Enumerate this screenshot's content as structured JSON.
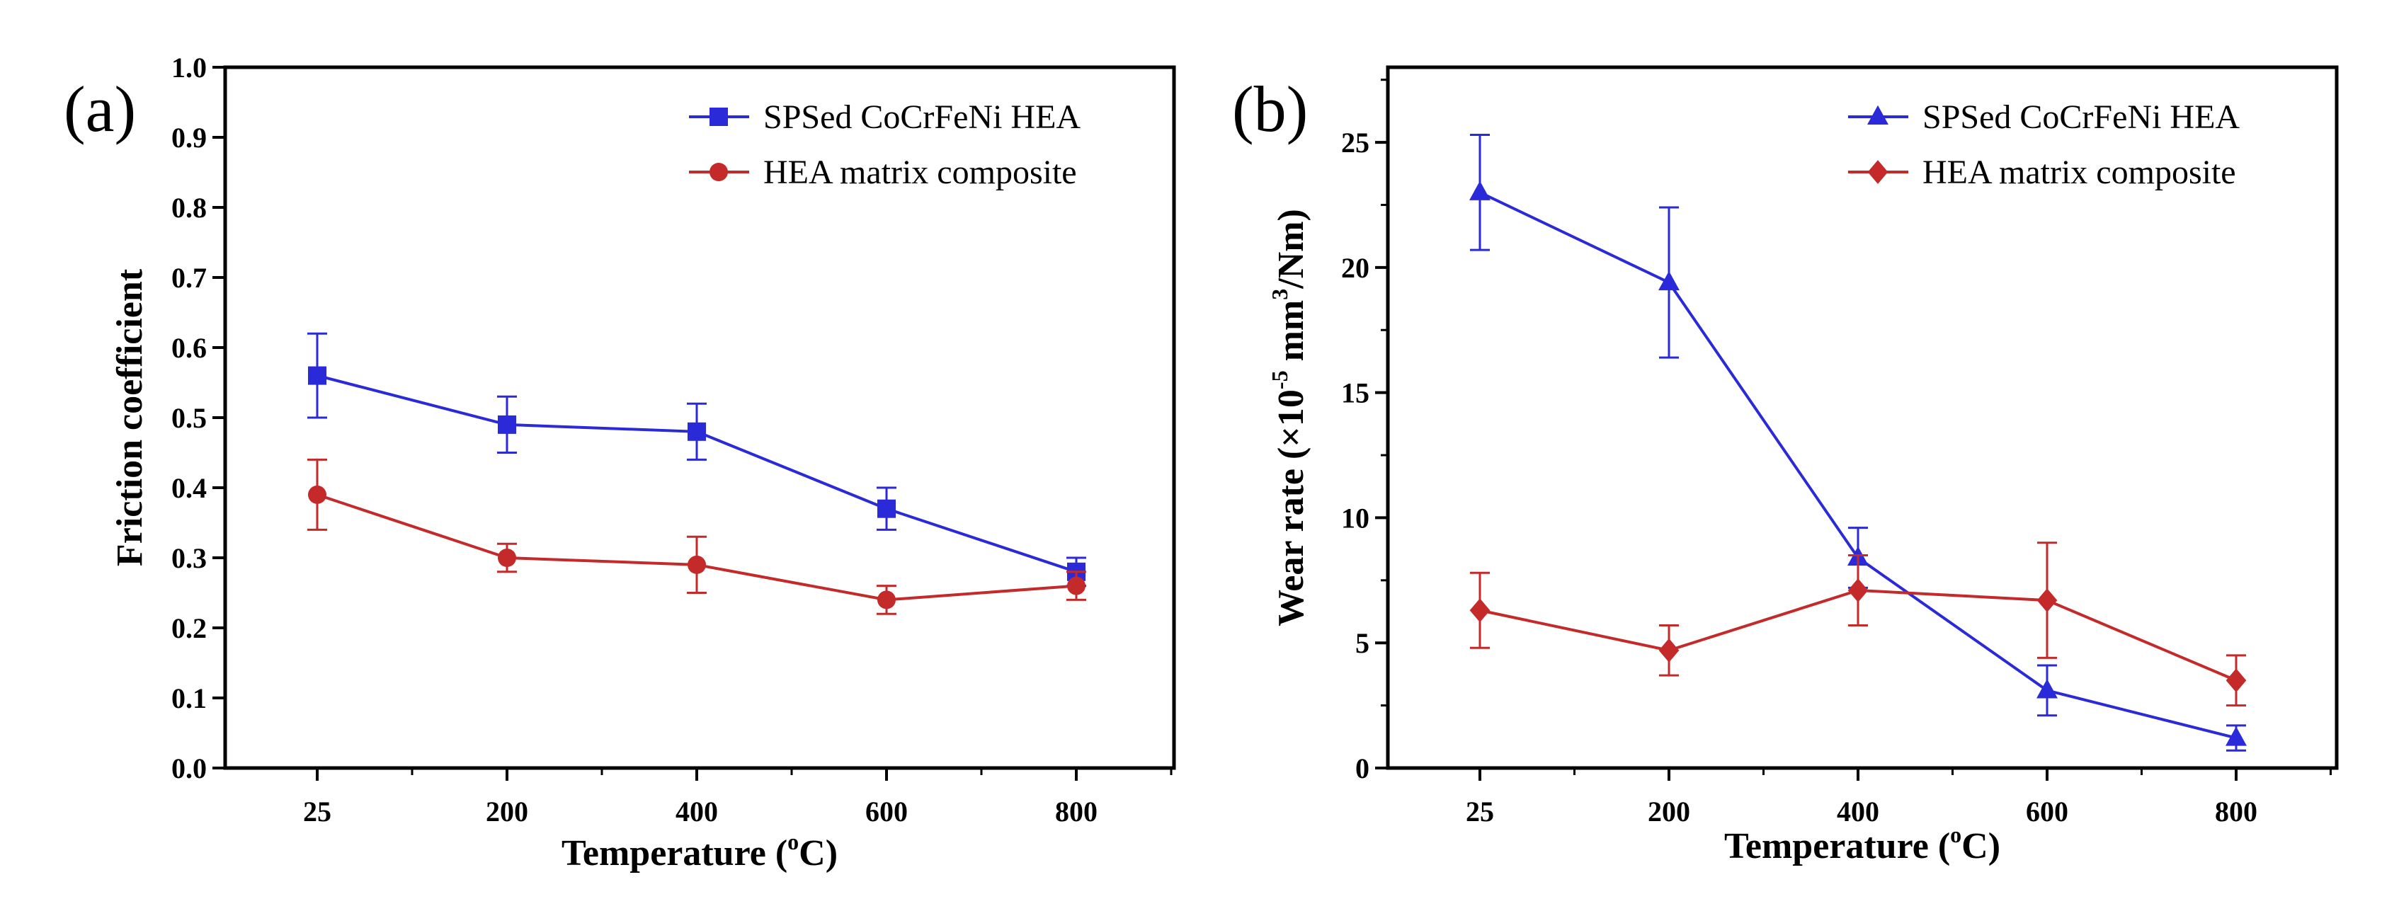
{
  "chart_data": [
    {
      "panel_label": "(a)",
      "type": "line",
      "categories": [
        "25",
        "200",
        "400",
        "600",
        "800"
      ],
      "xlabel_main": "Temperature (",
      "xlabel_sup": "o",
      "xlabel_end": "C)",
      "ylabel_main": "Friction coefficient",
      "ylim": [
        0.0,
        1.0
      ],
      "yticks": [
        "0.0",
        "0.1",
        "0.2",
        "0.3",
        "0.4",
        "0.5",
        "0.6",
        "0.7",
        "0.8",
        "0.9",
        "1.0"
      ],
      "legend_position": "top-right",
      "series": [
        {
          "name": "SPSed CoCrFeNi HEA",
          "color": "#2a2ad8",
          "marker": "square",
          "values": [
            0.56,
            0.49,
            0.48,
            0.37,
            0.28
          ],
          "errors": [
            0.06,
            0.04,
            0.04,
            0.03,
            0.02
          ]
        },
        {
          "name": "HEA matrix composite",
          "color": "#c42a2a",
          "marker": "circle",
          "values": [
            0.39,
            0.3,
            0.29,
            0.24,
            0.26
          ],
          "errors": [
            0.05,
            0.02,
            0.04,
            0.02,
            0.02
          ]
        }
      ]
    },
    {
      "panel_label": "(b)",
      "type": "line",
      "categories": [
        "25",
        "200",
        "400",
        "600",
        "800"
      ],
      "xlabel_main": "Temperature (",
      "xlabel_sup": "o",
      "xlabel_end": "C)",
      "ylabel_main": "Wear rate (×10",
      "ylabel_sup1": "-5",
      "ylabel_mid": " mm",
      "ylabel_sup2": "3",
      "ylabel_end": "/Nm)",
      "ylim": [
        0,
        28
      ],
      "yticks": [
        "0",
        "5",
        "10",
        "15",
        "20",
        "25"
      ],
      "legend_position": "top-right",
      "series": [
        {
          "name": "SPSed CoCrFeNi HEA",
          "color": "#2a2ad8",
          "marker": "triangle",
          "values": [
            23.0,
            19.4,
            8.4,
            3.1,
            1.2
          ],
          "errors": [
            2.3,
            3.0,
            1.2,
            1.0,
            0.5
          ]
        },
        {
          "name": "HEA matrix composite",
          "color": "#c42a2a",
          "marker": "diamond",
          "values": [
            6.3,
            4.7,
            7.1,
            6.7,
            3.5
          ],
          "errors": [
            1.5,
            1.0,
            1.4,
            2.3,
            1.0
          ]
        }
      ]
    }
  ]
}
